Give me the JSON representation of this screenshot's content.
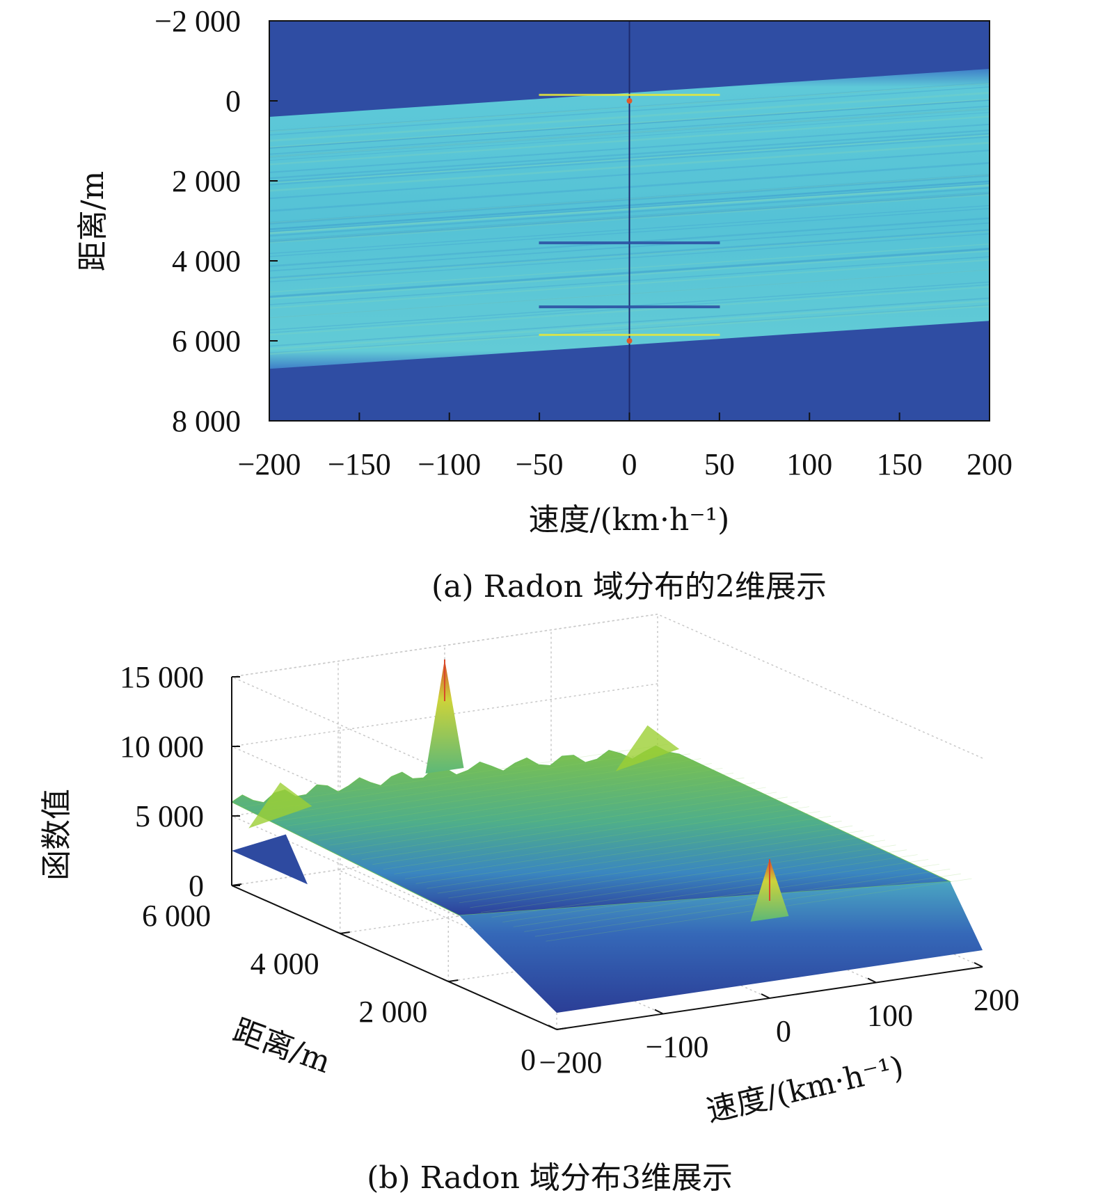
{
  "chart_data": [
    {
      "type": "heatmap",
      "caption": "(a) Radon 域分布的2维展示",
      "xlabel": "速度/(km·h⁻¹)",
      "ylabel": "距离/m",
      "xlim": [
        -200,
        200
      ],
      "ylim": [
        -2000,
        8000
      ],
      "x_ticks": [
        -200,
        -150,
        -100,
        -50,
        0,
        50,
        100,
        150,
        200
      ],
      "x_tick_labels": [
        "−200",
        "−150",
        "−100",
        "−50",
        "0",
        "50",
        "100",
        "150",
        "200"
      ],
      "y_ticks": [
        -2000,
        0,
        2000,
        4000,
        6000,
        8000
      ],
      "y_tick_labels": [
        "−2 000",
        "0",
        "2 000",
        "4 000",
        "6 000",
        "8 000"
      ],
      "band": {
        "top_at_left": 400,
        "top_at_right": -800,
        "bottom_at_left": 6700,
        "bottom_at_right": 5500
      },
      "features": [
        {
          "kind": "bright",
          "v": 0,
          "r": 0
        },
        {
          "kind": "bright",
          "v": 0,
          "r": 6000
        },
        {
          "kind": "dark",
          "v": 0,
          "r": 3700
        },
        {
          "kind": "dark",
          "v": 0,
          "r": 5300
        }
      ],
      "colors": {
        "background": "#2f4da3",
        "band": "#59c7d9",
        "highlight": "#e8e83a"
      }
    },
    {
      "type": "surface",
      "caption": "(b) Radon 域分布3维展示",
      "xlabel": "速度/(km·h⁻¹)",
      "ylabel": "距离/m",
      "zlabel": "函数值",
      "xlim": [
        -200,
        200
      ],
      "ylim": [
        0,
        6000
      ],
      "zlim": [
        0,
        15000
      ],
      "x_ticks": [
        -200,
        -100,
        0,
        100,
        200
      ],
      "x_tick_labels": [
        "−200",
        "−100",
        "0",
        "100",
        "200"
      ],
      "y_ticks": [
        0,
        2000,
        4000,
        6000
      ],
      "y_tick_labels": [
        "0",
        "2 000",
        "4 000",
        "6 000"
      ],
      "z_ticks": [
        0,
        5000,
        10000,
        15000
      ],
      "z_tick_labels": [
        "0",
        "5 000",
        "10 000",
        "15 000"
      ],
      "peaks": [
        {
          "v": 0,
          "r": 6000,
          "value": 14000
        },
        {
          "v": 0,
          "r": 0,
          "value": 10000
        }
      ],
      "plateau_value": 6000,
      "colors": {
        "low": "#2f4da3",
        "mid": "#58b8a0",
        "high": "#9ccf35",
        "peak": "#e06030"
      }
    }
  ]
}
